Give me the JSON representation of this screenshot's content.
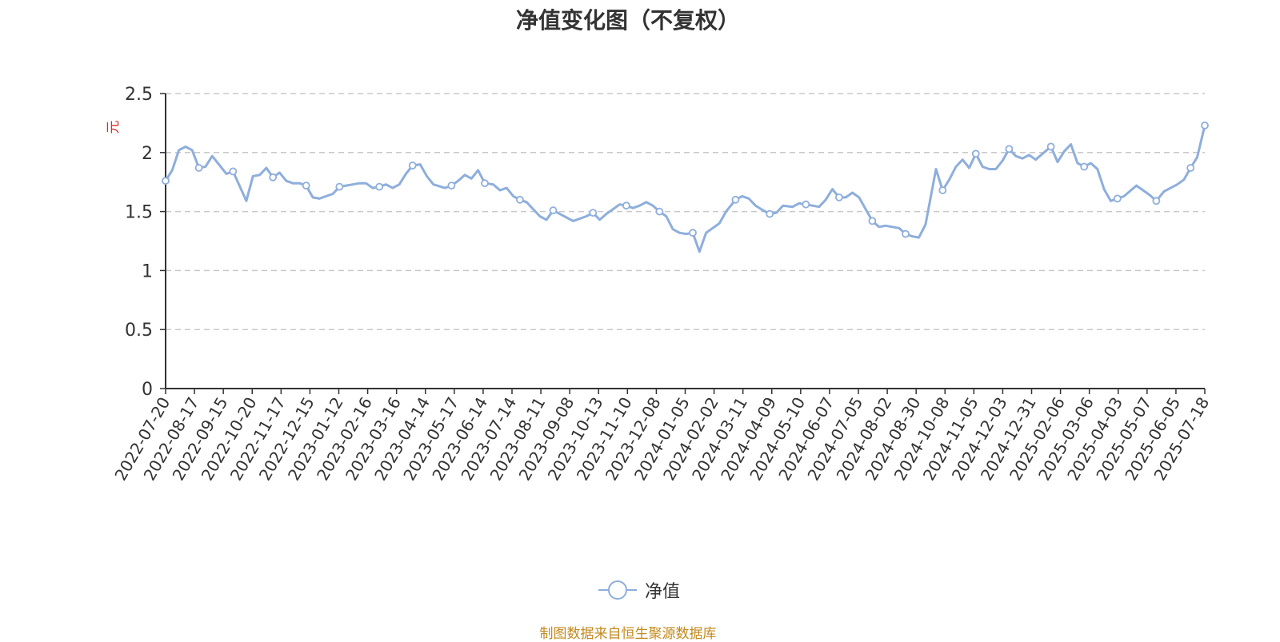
{
  "chart_data": {
    "type": "line",
    "title": "净值变化图（不复权）",
    "ylabel": "元",
    "ylim": [
      0,
      2.5
    ],
    "y_ticks": [
      "0",
      "0.5",
      "1",
      "1.5",
      "2",
      "2.5"
    ],
    "x_ticks": [
      "2022-07-20",
      "2022-08-17",
      "2022-09-15",
      "2022-10-20",
      "2022-11-17",
      "2022-12-15",
      "2023-01-12",
      "2023-02-16",
      "2023-03-16",
      "2023-04-14",
      "2023-05-17",
      "2023-06-14",
      "2023-07-14",
      "2023-08-11",
      "2023-09-08",
      "2023-10-13",
      "2023-11-10",
      "2023-12-08",
      "2024-01-05",
      "2024-02-02",
      "2024-03-11",
      "2024-04-09",
      "2024-05-10",
      "2024-06-07",
      "2024-07-05",
      "2024-08-02",
      "2024-08-30",
      "2024-10-08",
      "2024-11-05",
      "2024-12-03",
      "2024-12-31",
      "2025-02-06",
      "2025-03-06",
      "2025-04-03",
      "2025-05-07",
      "2025-06-05",
      "2025-07-18"
    ],
    "grid": true,
    "legend_position": "bottom",
    "series": [
      {
        "name": "净值",
        "color": "#8eaedc",
        "x": [
          "2022-07-20",
          "2022-07-27",
          "2022-08-03",
          "2022-08-10",
          "2022-08-17",
          "2022-08-24",
          "2022-08-31",
          "2022-09-07",
          "2022-09-15",
          "2022-09-22",
          "2022-09-29",
          "2022-10-13",
          "2022-10-20",
          "2022-10-27",
          "2022-11-03",
          "2022-11-10",
          "2022-11-17",
          "2022-11-24",
          "2022-12-01",
          "2022-12-08",
          "2022-12-15",
          "2022-12-22",
          "2022-12-29",
          "2023-01-05",
          "2023-01-12",
          "2023-01-19",
          "2023-02-02",
          "2023-02-09",
          "2023-02-16",
          "2023-02-23",
          "2023-03-02",
          "2023-03-09",
          "2023-03-16",
          "2023-03-23",
          "2023-03-30",
          "2023-04-06",
          "2023-04-14",
          "2023-04-21",
          "2023-04-28",
          "2023-05-10",
          "2023-05-17",
          "2023-05-24",
          "2023-05-31",
          "2023-06-07",
          "2023-06-14",
          "2023-06-21",
          "2023-06-30",
          "2023-07-07",
          "2023-07-14",
          "2023-07-21",
          "2023-07-28",
          "2023-08-04",
          "2023-08-11",
          "2023-08-18",
          "2023-08-25",
          "2023-09-01",
          "2023-09-08",
          "2023-09-15",
          "2023-09-22",
          "2023-10-06",
          "2023-10-13",
          "2023-10-20",
          "2023-10-27",
          "2023-11-03",
          "2023-11-10",
          "2023-11-17",
          "2023-11-24",
          "2023-12-01",
          "2023-12-08",
          "2023-12-15",
          "2023-12-22",
          "2023-12-29",
          "2024-01-05",
          "2024-01-12",
          "2024-01-19",
          "2024-01-26",
          "2024-02-02",
          "2024-02-09",
          "2024-02-23",
          "2024-03-01",
          "2024-03-11",
          "2024-03-18",
          "2024-03-25",
          "2024-04-01",
          "2024-04-09",
          "2024-04-16",
          "2024-04-23",
          "2024-04-30",
          "2024-05-10",
          "2024-05-17",
          "2024-05-24",
          "2024-05-31",
          "2024-06-07",
          "2024-06-14",
          "2024-06-21",
          "2024-06-28",
          "2024-07-05",
          "2024-07-12",
          "2024-07-19",
          "2024-07-26",
          "2024-08-02",
          "2024-08-09",
          "2024-08-16",
          "2024-08-23",
          "2024-08-30",
          "2024-09-06",
          "2024-09-13",
          "2024-09-20",
          "2024-09-27",
          "2024-10-08",
          "2024-10-15",
          "2024-10-22",
          "2024-10-29",
          "2024-11-05",
          "2024-11-12",
          "2024-11-19",
          "2024-11-26",
          "2024-12-03",
          "2024-12-10",
          "2024-12-17",
          "2024-12-24",
          "2024-12-31",
          "2025-01-07",
          "2025-01-14",
          "2025-01-21",
          "2025-02-06",
          "2025-02-13",
          "2025-02-20",
          "2025-02-27",
          "2025-03-06",
          "2025-03-13",
          "2025-03-20",
          "2025-03-27",
          "2025-04-03",
          "2025-04-10",
          "2025-04-17",
          "2025-04-24",
          "2025-05-07",
          "2025-05-14",
          "2025-05-21",
          "2025-05-28",
          "2025-06-05",
          "2025-06-12",
          "2025-06-19",
          "2025-06-26",
          "2025-07-03",
          "2025-07-10",
          "2025-07-18"
        ],
        "values": [
          1.76,
          1.85,
          2.02,
          2.05,
          2.02,
          1.87,
          1.88,
          1.97,
          1.89,
          1.82,
          1.84,
          1.59,
          1.8,
          1.81,
          1.87,
          1.79,
          1.83,
          1.76,
          1.74,
          1.74,
          1.72,
          1.62,
          1.61,
          1.63,
          1.65,
          1.71,
          1.73,
          1.74,
          1.74,
          1.7,
          1.71,
          1.73,
          1.7,
          1.73,
          1.82,
          1.89,
          1.9,
          1.8,
          1.73,
          1.7,
          1.72,
          1.76,
          1.81,
          1.78,
          1.85,
          1.74,
          1.73,
          1.68,
          1.7,
          1.63,
          1.6,
          1.58,
          1.52,
          1.46,
          1.43,
          1.51,
          1.48,
          1.45,
          1.42,
          1.46,
          1.49,
          1.43,
          1.48,
          1.52,
          1.56,
          1.55,
          1.53,
          1.55,
          1.58,
          1.55,
          1.5,
          1.46,
          1.35,
          1.32,
          1.31,
          1.32,
          1.16,
          1.32,
          1.4,
          1.5,
          1.6,
          1.63,
          1.61,
          1.55,
          1.51,
          1.48,
          1.49,
          1.55,
          1.54,
          1.57,
          1.56,
          1.55,
          1.54,
          1.6,
          1.69,
          1.62,
          1.62,
          1.66,
          1.62,
          1.52,
          1.42,
          1.37,
          1.38,
          1.37,
          1.36,
          1.31,
          1.29,
          1.28,
          1.39,
          1.86,
          1.68,
          1.77,
          1.88,
          1.94,
          1.87,
          1.99,
          1.88,
          1.86,
          1.86,
          1.93,
          2.03,
          1.97,
          1.95,
          1.98,
          1.94,
          2.05,
          1.92,
          2.01,
          2.07,
          1.91,
          1.88,
          1.91,
          1.86,
          1.69,
          1.59,
          1.61,
          1.63,
          1.72,
          1.68,
          1.64,
          1.59,
          1.67,
          1.7,
          1.73,
          1.77,
          1.87,
          1.96,
          2.23
        ]
      }
    ]
  },
  "legend": {
    "label": "净值"
  },
  "footer": {
    "source": "制图数据来自恒生聚源数据库"
  }
}
